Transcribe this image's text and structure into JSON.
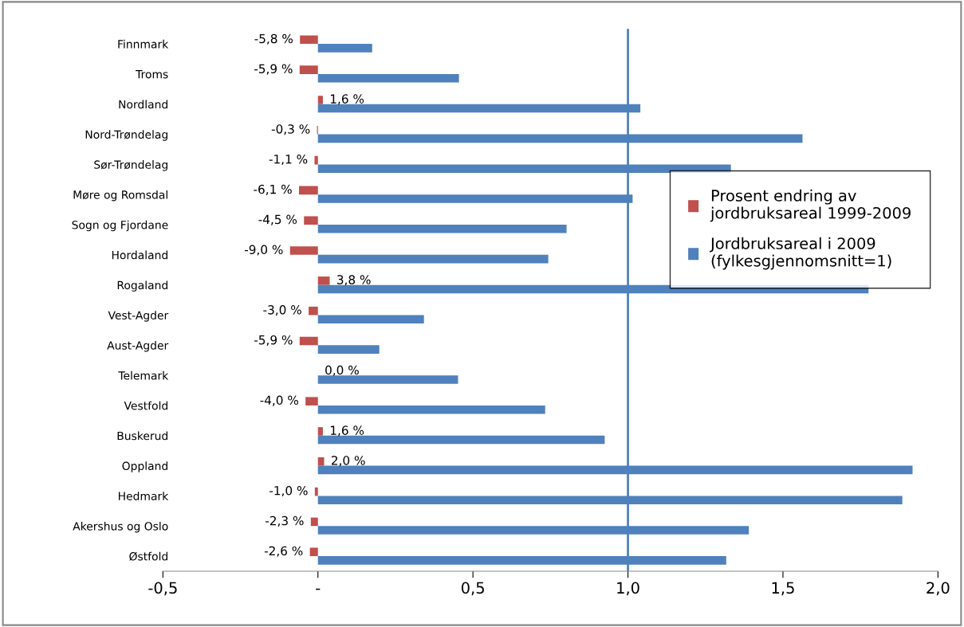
{
  "chart_data": {
    "type": "bar",
    "orientation": "horizontal",
    "categories": [
      "Finnmark",
      "Troms",
      "Nordland",
      "Nord-Trøndelag",
      "Sør-Trøndelag",
      "Møre og Romsdal",
      "Sogn og Fjordane",
      "Hordaland",
      "Rogaland",
      "Vest-Agder",
      "Aust-Agder",
      "Telemark",
      "Vestfold",
      "Buskerud",
      "Oppland",
      "Hedmark",
      "Akershus og Oslo",
      "Østfold"
    ],
    "series": [
      {
        "name": "Prosent endring av\njordbruksareal 1999-2009",
        "color": "#c0504d",
        "values": [
          -0.058,
          -0.059,
          0.016,
          -0.003,
          -0.011,
          -0.061,
          -0.045,
          -0.09,
          0.038,
          -0.03,
          -0.059,
          0.0,
          -0.04,
          0.016,
          0.02,
          -0.01,
          -0.023,
          -0.026
        ],
        "value_labels": [
          "-5,8 %",
          "-5,9 %",
          "1,6 %",
          "-0,3 %",
          "-1,1 %",
          "-6,1 %",
          "-4,5 %",
          "-9,0 %",
          "3,8 %",
          "-3,0 %",
          "-5,9 %",
          "0,0 %",
          "-4,0 %",
          "1,6 %",
          "2,0 %",
          "-1,0 %",
          "-2,3 %",
          "-2,6 %"
        ]
      },
      {
        "name": "Jordbruksareal i 2009\n(fylkesgjennomsnitt=1)",
        "color": "#4f81bd",
        "values": [
          0.175,
          0.455,
          1.04,
          1.563,
          1.332,
          1.015,
          0.802,
          0.743,
          1.776,
          0.342,
          0.198,
          0.452,
          0.733,
          0.925,
          1.918,
          1.885,
          1.39,
          1.317
        ]
      }
    ],
    "xlim": [
      -0.5,
      2.0
    ],
    "xticks": [
      {
        "value": -0.5,
        "label": "-0,5"
      },
      {
        "value": 0,
        "label": "-"
      },
      {
        "value": 0.5,
        "label": "0,5"
      },
      {
        "value": 1.0,
        "label": "1,0"
      },
      {
        "value": 1.5,
        "label": "1,5"
      },
      {
        "value": 2.0,
        "label": "2,0"
      }
    ],
    "ref_lines": [
      {
        "axis": "x",
        "value": 1.0,
        "color": "#4f81bd"
      }
    ],
    "grid": false,
    "legend": "right"
  }
}
